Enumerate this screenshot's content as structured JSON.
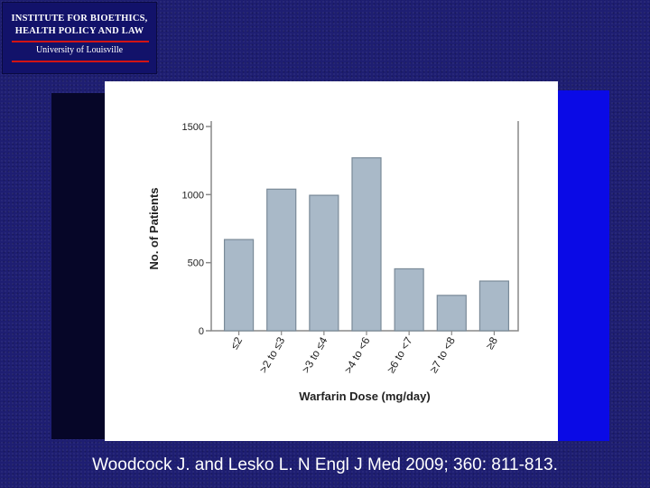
{
  "logo": {
    "line1": "INSTITUTE FOR BIOETHICS,",
    "line2": "HEALTH POLICY AND LAW",
    "line3": "University of Louisville"
  },
  "citation": "Woodcock J. and Lesko L. N Engl J Med 2009; 360: 811-813.",
  "chart_data": {
    "type": "bar",
    "categories": [
      "≤2",
      ">2 to ≤3",
      ">3 to ≤4",
      ">4 to <6",
      "≥6 to <7",
      "≥7 to <8",
      "≥8"
    ],
    "values": [
      670,
      1040,
      995,
      1270,
      455,
      260,
      365
    ],
    "xlabel": "Warfarin Dose (mg/day)",
    "ylabel": "No. of Patients",
    "ylim": [
      0,
      1500
    ],
    "yticks": [
      0,
      500,
      1000,
      1500
    ],
    "bar_color": "#a9b9c8",
    "grid": false
  }
}
